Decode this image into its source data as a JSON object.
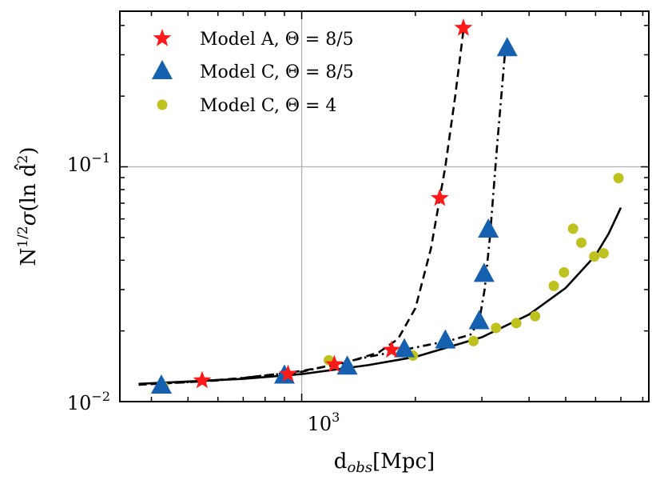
{
  "chart_data": {
    "type": "scatter",
    "xscale": "log",
    "yscale": "log",
    "xlim": [
      330,
      8300
    ],
    "ylim": [
      0.01,
      0.46
    ],
    "xlabel": "d_obs[Mpc]",
    "ylabel": "N^{1/2} σ(ln d̂²)",
    "x_tick_labels": [
      {
        "value": 1000,
        "base": "10",
        "exp": "3"
      }
    ],
    "y_tick_labels": [
      {
        "value": 0.01,
        "base": "10",
        "exp": "−2"
      },
      {
        "value": 0.1,
        "base": "10",
        "exp": "−1"
      }
    ],
    "grid": {
      "x": [
        1000
      ],
      "y": [
        0.1
      ]
    },
    "legend_position": "upper-left",
    "series": [
      {
        "name": "Model A, Θ = 8/5",
        "marker": "star",
        "color": "#ff1a1a",
        "x": [
          545,
          920,
          1220,
          1730,
          2320,
          2680
        ],
        "y": [
          0.0123,
          0.0131,
          0.0144,
          0.0166,
          0.0735,
          0.39
        ],
        "fit": {
          "style": "dashed",
          "x": [
            370,
            500,
            700,
            1000,
            1300,
            1600,
            1800,
            2000,
            2200,
            2400,
            2550,
            2680
          ],
          "y": [
            0.0118,
            0.0121,
            0.0126,
            0.0135,
            0.0146,
            0.0162,
            0.0185,
            0.025,
            0.045,
            0.1,
            0.2,
            0.38
          ]
        }
      },
      {
        "name": "Model C, Θ = 8/5",
        "marker": "triangle",
        "color": "#1660b0",
        "x": [
          425,
          900,
          1320,
          1870,
          2400,
          2950,
          3040,
          3120,
          3500
        ],
        "y": [
          0.0117,
          0.0129,
          0.0141,
          0.0167,
          0.0182,
          0.022,
          0.035,
          0.054,
          0.32
        ],
        "fit": {
          "style": "dashdot",
          "x": [
            370,
            600,
            1000,
            1500,
            2000,
            2500,
            2800,
            2950,
            3050,
            3150,
            3300,
            3450
          ],
          "y": [
            0.0118,
            0.0123,
            0.0134,
            0.0155,
            0.017,
            0.0183,
            0.0193,
            0.022,
            0.03,
            0.05,
            0.13,
            0.3
          ]
        }
      },
      {
        "name": "Model C, Θ = 4",
        "marker": "circle",
        "color": "#bfc21e",
        "x": [
          430,
          1180,
          1970,
          2850,
          3270,
          3700,
          4150,
          4650,
          4950,
          5230,
          5500,
          5950,
          6300,
          6900
        ],
        "y": [
          0.0116,
          0.015,
          0.0157,
          0.0181,
          0.0206,
          0.0216,
          0.0231,
          0.0311,
          0.0355,
          0.0545,
          0.0475,
          0.0415,
          0.0428,
          0.0895
        ]
      }
    ],
    "trend": {
      "style": "solid",
      "x": [
        370,
        700,
        1000,
        1500,
        2000,
        3000,
        4000,
        5000,
        6000,
        6500,
        7000
      ],
      "y": [
        0.0119,
        0.0125,
        0.0131,
        0.0143,
        0.0155,
        0.0188,
        0.0235,
        0.0305,
        0.042,
        0.052,
        0.067
      ]
    }
  }
}
